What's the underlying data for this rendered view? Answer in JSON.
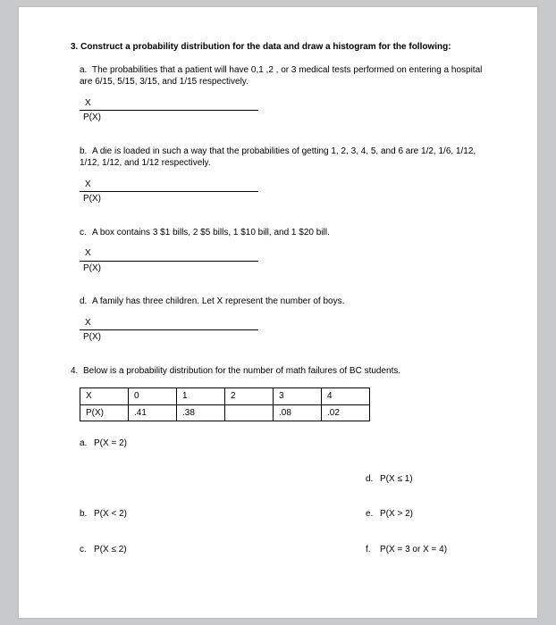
{
  "q3": {
    "title": "3. Construct a probability distribution for the data and draw a histogram for the following:",
    "parts": {
      "a": {
        "letter": "a.",
        "text": "The probabilities that a patient will have 0,1 ,2 , or 3 medical tests performed on entering a hospital are 6/15, 5/15, 3/15, and 1/15 respectively."
      },
      "b": {
        "letter": "b.",
        "text": "A die is loaded in such a way that the probabilities of getting 1, 2, 3, 4, 5, and 6 are 1/2, 1/6, 1/12, 1/12, 1/12, and 1/12 respectively."
      },
      "c": {
        "letter": "c.",
        "text": "A box contains 3 $1 bills, 2 $5 bills, 1 $10 bill, and 1 $20 bill."
      },
      "d": {
        "letter": "d.",
        "text": "A family has three children. Let X represent the number of boys."
      }
    },
    "xpx": {
      "x": "X",
      "px": "P(X)"
    }
  },
  "q4": {
    "num": "4.",
    "title": "Below is a probability distribution for the number of math failures of BC students.",
    "table": {
      "r0": {
        "c0": "X",
        "c1": "0",
        "c2": "1",
        "c3": "2",
        "c4": "3",
        "c5": "4"
      },
      "r1": {
        "c0": "P(X)",
        "c1": ".41",
        "c2": ".38",
        "c3": "",
        "c4": ".08",
        "c5": ".02"
      }
    },
    "items": {
      "a": {
        "letter": "a.",
        "text": "P(X = 2)"
      },
      "b": {
        "letter": "b.",
        "text": "P(X < 2)"
      },
      "c": {
        "letter": "c.",
        "text": "P(X ≤ 2)"
      },
      "d": {
        "letter": "d.",
        "text": "P(X ≤ 1)"
      },
      "e": {
        "letter": "e.",
        "text": "P(X > 2)"
      },
      "f": {
        "letter": "f.",
        "text": "P(X = 3 or X = 4)"
      }
    }
  }
}
